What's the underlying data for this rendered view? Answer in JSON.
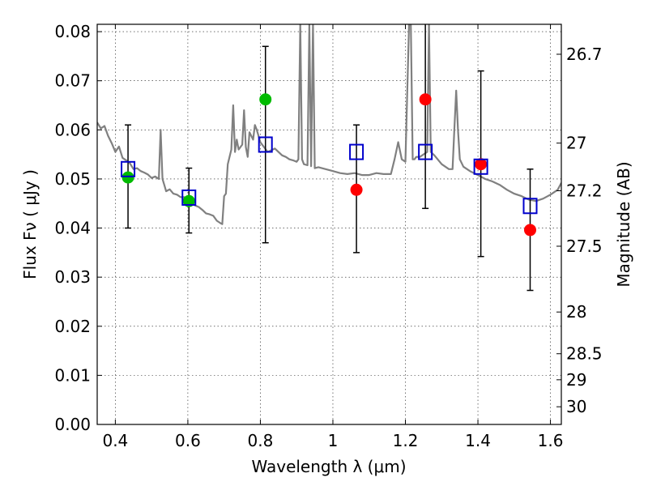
{
  "chart_data": {
    "type": "scatter",
    "title": "",
    "xlabel": "Wavelength  λ (μm)",
    "ylabel": "Flux  Fν  ( μJy )",
    "y2label": "Magnitude (AB)",
    "xlim": [
      0.35,
      1.63
    ],
    "ylim": [
      0.0,
      0.0815
    ],
    "grid": true,
    "xticks": [
      0.4,
      0.6,
      0.8,
      1.0,
      1.2,
      1.4,
      1.6
    ],
    "xtick_labels": [
      "0.4",
      "0.6",
      "0.8",
      "1",
      "1.2",
      "1.4",
      "1.6"
    ],
    "yticks": [
      0.0,
      0.01,
      0.02,
      0.03,
      0.04,
      0.05,
      0.06,
      0.07,
      0.08
    ],
    "ytick_labels": [
      "0.00",
      "0.01",
      "0.02",
      "0.03",
      "0.04",
      "0.05",
      "0.06",
      "0.07",
      "0.08"
    ],
    "y2ticks": [
      {
        "label": "26.7",
        "flux": 0.0754
      },
      {
        "label": "27",
        "flux": 0.0573
      },
      {
        "label": "27.2",
        "flux": 0.0476
      },
      {
        "label": "27.5",
        "flux": 0.0363
      },
      {
        "label": "28",
        "flux": 0.0229
      },
      {
        "label": "28.5",
        "flux": 0.0144
      },
      {
        "label": "29",
        "flux": 0.0091
      },
      {
        "label": "30",
        "flux": 0.0036
      }
    ],
    "series": [
      {
        "marker": "circle",
        "color": "#00bb00",
        "x": [
          0.435,
          0.603,
          0.814
        ],
        "y": [
          0.0503,
          0.0455,
          0.0662
        ]
      },
      {
        "marker": "circle",
        "color": "#ff0000",
        "x": [
          1.065,
          1.255,
          1.408,
          1.544
        ],
        "y": [
          0.0478,
          0.0662,
          0.053,
          0.0396
        ]
      },
      {
        "marker": "square",
        "color": "#0000cc",
        "x": [
          0.435,
          0.603,
          0.814,
          1.065,
          1.255,
          1.408,
          1.544
        ],
        "y": [
          0.052,
          0.0462,
          0.057,
          0.0555,
          0.0555,
          0.0525,
          0.0445
        ],
        "err_low": [
          0.04,
          0.039,
          0.037,
          0.035,
          0.044,
          0.0342,
          0.0273
        ],
        "err_high": [
          0.061,
          0.0522,
          0.077,
          0.061,
          0.082,
          0.072,
          0.052
        ]
      },
      {
        "type": "line",
        "color": "#808080",
        "x": [
          0.35,
          0.36,
          0.37,
          0.38,
          0.39,
          0.4,
          0.41,
          0.42,
          0.43,
          0.44,
          0.45,
          0.46,
          0.47,
          0.48,
          0.49,
          0.5,
          0.51,
          0.52,
          0.525,
          0.53,
          0.535,
          0.54,
          0.55,
          0.56,
          0.57,
          0.58,
          0.59,
          0.6,
          0.61,
          0.62,
          0.63,
          0.64,
          0.65,
          0.66,
          0.67,
          0.68,
          0.69,
          0.695,
          0.7,
          0.705,
          0.71,
          0.72,
          0.725,
          0.73,
          0.735,
          0.74,
          0.75,
          0.755,
          0.76,
          0.765,
          0.77,
          0.78,
          0.785,
          0.79,
          0.8,
          0.82,
          0.84,
          0.85,
          0.86,
          0.87,
          0.88,
          0.89,
          0.9,
          0.905,
          0.91,
          0.915,
          0.92,
          0.93,
          0.935,
          0.94,
          0.945,
          0.95,
          0.96,
          0.98,
          1.0,
          1.02,
          1.04,
          1.06,
          1.08,
          1.1,
          1.12,
          1.14,
          1.16,
          1.17,
          1.18,
          1.19,
          1.2,
          1.21,
          1.215,
          1.22,
          1.225,
          1.23,
          1.24,
          1.25,
          1.26,
          1.265,
          1.27,
          1.28,
          1.3,
          1.32,
          1.33,
          1.335,
          1.34,
          1.345,
          1.35,
          1.36,
          1.38,
          1.4,
          1.42,
          1.44,
          1.46,
          1.48,
          1.5,
          1.52,
          1.54,
          1.56,
          1.58,
          1.6,
          1.62,
          1.63
        ],
        "y": [
          0.0615,
          0.0603,
          0.0608,
          0.0588,
          0.0573,
          0.0555,
          0.0566,
          0.0543,
          0.0538,
          0.0532,
          0.052,
          0.0522,
          0.0516,
          0.0513,
          0.0509,
          0.0502,
          0.0505,
          0.05,
          0.06,
          0.05,
          0.0488,
          0.0475,
          0.0479,
          0.047,
          0.0468,
          0.0463,
          0.0463,
          0.0455,
          0.045,
          0.0446,
          0.0443,
          0.0437,
          0.043,
          0.0428,
          0.0425,
          0.0415,
          0.041,
          0.0408,
          0.0465,
          0.047,
          0.053,
          0.056,
          0.065,
          0.0555,
          0.058,
          0.056,
          0.057,
          0.064,
          0.0565,
          0.0545,
          0.0595,
          0.058,
          0.061,
          0.06,
          0.0575,
          0.0555,
          0.0562,
          0.0555,
          0.0548,
          0.0545,
          0.054,
          0.0538,
          0.0535,
          0.054,
          0.0815,
          0.054,
          0.053,
          0.0528,
          0.0815,
          0.0526,
          0.0815,
          0.0522,
          0.0524,
          0.052,
          0.0516,
          0.0512,
          0.051,
          0.0512,
          0.0508,
          0.0508,
          0.0512,
          0.051,
          0.051,
          0.054,
          0.0575,
          0.054,
          0.0535,
          0.0815,
          0.0815,
          0.054,
          0.054,
          0.0545,
          0.0545,
          0.055,
          0.0555,
          0.0815,
          0.0555,
          0.0548,
          0.053,
          0.052,
          0.052,
          0.06,
          0.068,
          0.06,
          0.054,
          0.0525,
          0.0515,
          0.0508,
          0.05,
          0.0495,
          0.0488,
          0.0478,
          0.047,
          0.0465,
          0.0458,
          0.0455,
          0.046,
          0.0468,
          0.0478,
          0.0492
        ]
      }
    ]
  }
}
